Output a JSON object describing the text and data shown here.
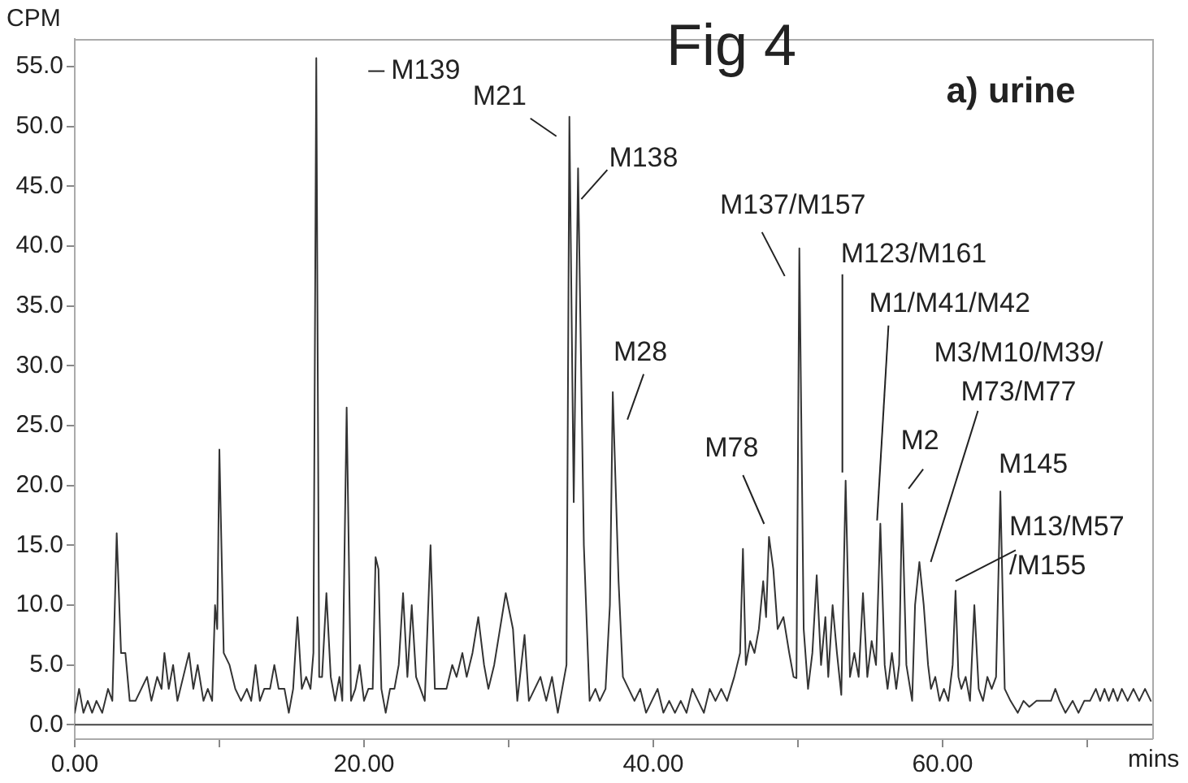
{
  "chart_data": {
    "type": "line",
    "title": "Fig 4",
    "xlabel": "mins",
    "ylabel": "CPM",
    "xlim": [
      0,
      74.5
    ],
    "ylim": [
      -1.2,
      57.3
    ],
    "xticks": [
      {
        "value": 0,
        "label": "0.00"
      },
      {
        "value": 10,
        "label": null
      },
      {
        "value": 20,
        "label": "20.00"
      },
      {
        "value": 30,
        "label": null
      },
      {
        "value": 40,
        "label": "40.00"
      },
      {
        "value": 50,
        "label": null
      },
      {
        "value": 60,
        "label": "60.00"
      },
      {
        "value": 70,
        "label": null
      }
    ],
    "yticks": [
      {
        "value": 0,
        "label": "0.0"
      },
      {
        "value": 5,
        "label": "5.0"
      },
      {
        "value": 10,
        "label": "10.0"
      },
      {
        "value": 15,
        "label": "15.0"
      },
      {
        "value": 20,
        "label": "20.0"
      },
      {
        "value": 25,
        "label": "25.0"
      },
      {
        "value": 30,
        "label": "30.0"
      },
      {
        "value": 35,
        "label": "35.0"
      },
      {
        "value": 40,
        "label": "40.0"
      },
      {
        "value": 45,
        "label": "45.0"
      },
      {
        "value": 50,
        "label": "50.0"
      },
      {
        "value": 55,
        "label": "55.0"
      }
    ],
    "grid": false,
    "legend": false,
    "marker": "none",
    "line_style": "solid",
    "ref_lines": [
      {
        "axis": "y",
        "value": 0,
        "label": null,
        "color": "#444444"
      }
    ],
    "series": [
      {
        "color": "#333333",
        "x": [
          0.0,
          0.3,
          0.6,
          0.9,
          1.2,
          1.5,
          1.9,
          2.3,
          2.6,
          2.9,
          3.2,
          3.5,
          3.8,
          4.2,
          4.6,
          5.0,
          5.3,
          5.7,
          6.0,
          6.2,
          6.5,
          6.8,
          7.1,
          7.5,
          7.9,
          8.2,
          8.5,
          8.9,
          9.2,
          9.5,
          9.7,
          9.85,
          10.0,
          10.3,
          10.7,
          11.1,
          11.5,
          11.9,
          12.2,
          12.5,
          12.8,
          13.1,
          13.5,
          13.8,
          14.1,
          14.5,
          14.8,
          15.1,
          15.4,
          15.7,
          16.0,
          16.3,
          16.5,
          16.7,
          16.9,
          17.1,
          17.4,
          17.7,
          18.0,
          18.3,
          18.5,
          18.8,
          19.1,
          19.4,
          19.7,
          20.0,
          20.3,
          20.6,
          20.8,
          21.0,
          21.2,
          21.5,
          21.8,
          22.1,
          22.4,
          22.7,
          23.0,
          23.3,
          23.6,
          23.9,
          24.2,
          24.6,
          24.9,
          25.3,
          25.7,
          26.1,
          26.4,
          26.8,
          27.1,
          27.5,
          27.9,
          28.3,
          28.6,
          29.0,
          29.4,
          29.8,
          30.3,
          30.6,
          31.1,
          31.4,
          31.8,
          32.2,
          32.6,
          33.0,
          33.4,
          33.7,
          34.0,
          34.2,
          34.5,
          34.8,
          35.2,
          35.6,
          36.0,
          36.3,
          36.7,
          37.0,
          37.2,
          37.6,
          37.9,
          38.3,
          38.7,
          39.1,
          39.5,
          39.9,
          40.3,
          40.7,
          41.1,
          41.5,
          41.9,
          42.3,
          42.7,
          43.1,
          43.5,
          43.9,
          44.3,
          44.7,
          45.1,
          45.6,
          46.0,
          46.2,
          46.4,
          46.7,
          47.0,
          47.3,
          47.6,
          47.8,
          48.0,
          48.3,
          48.6,
          49.0,
          49.4,
          49.7,
          49.9,
          50.1,
          50.4,
          50.7,
          51.0,
          51.3,
          51.6,
          51.9,
          52.1,
          52.4,
          52.7,
          53.0,
          53.3,
          53.6,
          53.9,
          54.2,
          54.5,
          54.8,
          55.1,
          55.4,
          55.7,
          56.0,
          56.2,
          56.5,
          56.8,
          57.0,
          57.2,
          57.5,
          57.9,
          58.1,
          58.4,
          58.7,
          59.0,
          59.2,
          59.5,
          59.8,
          60.1,
          60.4,
          60.7,
          60.9,
          61.1,
          61.3,
          61.6,
          61.9,
          62.2,
          62.5,
          62.8,
          63.1,
          63.4,
          63.7,
          64.0,
          64.3,
          64.7,
          65.2,
          65.6,
          66.0,
          66.5,
          67.0,
          67.5,
          67.8,
          68.1,
          68.5,
          69.0,
          69.4,
          69.8,
          70.2,
          70.6,
          70.9,
          71.2,
          71.5,
          71.8,
          72.1,
          72.4,
          72.8,
          73.2,
          73.6,
          74.0,
          74.4
        ],
        "values": [
          1,
          3,
          1,
          2,
          1,
          2,
          1,
          3,
          2,
          16,
          6,
          6,
          2,
          2,
          3,
          4,
          2,
          4,
          3,
          6,
          3,
          5,
          2,
          4,
          6,
          3,
          5,
          2,
          3,
          2,
          10,
          8,
          23,
          6,
          5,
          3,
          2,
          3,
          2,
          5,
          2,
          3,
          3,
          5,
          3,
          3,
          1,
          3,
          9,
          3,
          4,
          3,
          6,
          55.7,
          4,
          4,
          11,
          4,
          2,
          4,
          2,
          26.5,
          2,
          3,
          5,
          2,
          3,
          3,
          14,
          13,
          3,
          1,
          3,
          3,
          5,
          11,
          4,
          10,
          4,
          3,
          2,
          15,
          3,
          3,
          3,
          5,
          4,
          6,
          4,
          6,
          9,
          5,
          3,
          5,
          8,
          11,
          8,
          2,
          7.5,
          2,
          3,
          4,
          2,
          4,
          1,
          3,
          5,
          50.8,
          18.6,
          46.5,
          15,
          2,
          3,
          2,
          3,
          10,
          27.8,
          12,
          4,
          3,
          2,
          3,
          1,
          2,
          3,
          1,
          2,
          1,
          2,
          1,
          3,
          2,
          1,
          3,
          2,
          3,
          2,
          4,
          6,
          14.7,
          5,
          7,
          6,
          8,
          12,
          9,
          15.7,
          13,
          8,
          9,
          6,
          4,
          3.9,
          39.8,
          8,
          3,
          6,
          12.5,
          5,
          9,
          4,
          10,
          6,
          2.5,
          20.4,
          4,
          6,
          4,
          11,
          4,
          7,
          5,
          16.8,
          5,
          3,
          6,
          3,
          5,
          18.5,
          5,
          2,
          10,
          13.6,
          10,
          5,
          3,
          4,
          2,
          3,
          2,
          5,
          11.2,
          4,
          3,
          4,
          2,
          10,
          3,
          2,
          4,
          3,
          4,
          19.5,
          3,
          2,
          1,
          2,
          1.5,
          2,
          2,
          2,
          3,
          2,
          1,
          2,
          1,
          2,
          2,
          3,
          2,
          3,
          2,
          3,
          2,
          3,
          2,
          3,
          2,
          3,
          2
        ]
      }
    ],
    "annotations": [
      {
        "text": "M139",
        "x": 16.7,
        "y": 55.7
      },
      {
        "text": "M21",
        "x": 34.2,
        "y": 50.8
      },
      {
        "text": "M138",
        "x": 34.8,
        "y": 46.5
      },
      {
        "text": "M28",
        "x": 37.2,
        "y": 27.8
      },
      {
        "text": "M78",
        "x": 48.0,
        "y": 15.7
      },
      {
        "text": "M137/M157",
        "x": 50.1,
        "y": 39.8
      },
      {
        "text": "M123/M161",
        "x": 53.3,
        "y": 20.4
      },
      {
        "text": "M1/M41/M42",
        "x": 55.7,
        "y": 16.8
      },
      {
        "text": "M2",
        "x": 57.2,
        "y": 18.5
      },
      {
        "text": "M3/M10/M39/M73/M77",
        "x": 58.4,
        "y": 13.6
      },
      {
        "text": "M145",
        "x": 64.0,
        "y": 19.5
      },
      {
        "text": "M13/M57/M155",
        "x": 60.9,
        "y": 11.2
      },
      "a) urine"
    ]
  }
}
